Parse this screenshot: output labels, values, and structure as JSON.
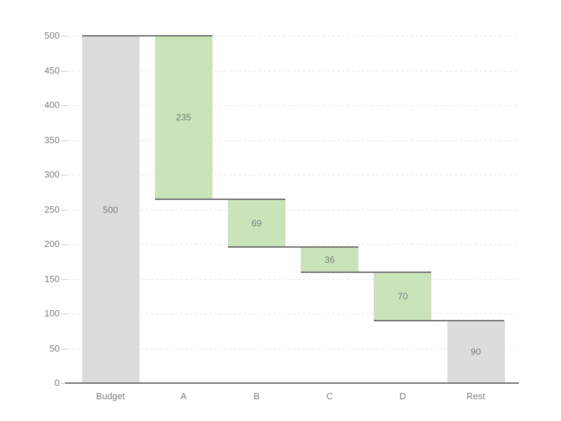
{
  "chart_data": {
    "type": "bar",
    "variant": "waterfall",
    "title": "",
    "xlabel": "",
    "ylabel": "",
    "ylim": [
      0,
      500
    ],
    "y_ticks": [
      0,
      50,
      100,
      150,
      200,
      250,
      300,
      350,
      400,
      450,
      500
    ],
    "grid": "horizontal-dotted",
    "legend": "none",
    "categories": [
      "Budget",
      "A",
      "B",
      "C",
      "D",
      "Rest"
    ],
    "values": [
      500,
      235,
      69,
      36,
      70,
      90
    ],
    "columns": [
      {
        "label": "Budget",
        "value_label": "500",
        "value": 500,
        "from": 0,
        "to": 500,
        "kind": "total"
      },
      {
        "label": "A",
        "value_label": "235",
        "value": 235,
        "from": 265,
        "to": 500,
        "kind": "delta"
      },
      {
        "label": "B",
        "value_label": "69",
        "value": 69,
        "from": 196,
        "to": 265,
        "kind": "delta"
      },
      {
        "label": "C",
        "value_label": "36",
        "value": 36,
        "from": 160,
        "to": 196,
        "kind": "delta"
      },
      {
        "label": "D",
        "value_label": "70",
        "value": 70,
        "from": 90,
        "to": 160,
        "kind": "delta"
      },
      {
        "label": "Rest",
        "value_label": "90",
        "value": 90,
        "from": 0,
        "to": 90,
        "kind": "total"
      }
    ],
    "connector_levels": [
      500,
      265,
      196,
      160,
      90
    ],
    "colors": {
      "total_bar": "#dcdcdc",
      "delta_bar": "#c8e4b8",
      "connector_line": "#707070",
      "axis_line": "#6f6f6f",
      "gridline": "#e3e3e3",
      "tick_label": "#7d7d7d",
      "bar_label": "#7d7d7d",
      "background": "#ffffff"
    }
  }
}
